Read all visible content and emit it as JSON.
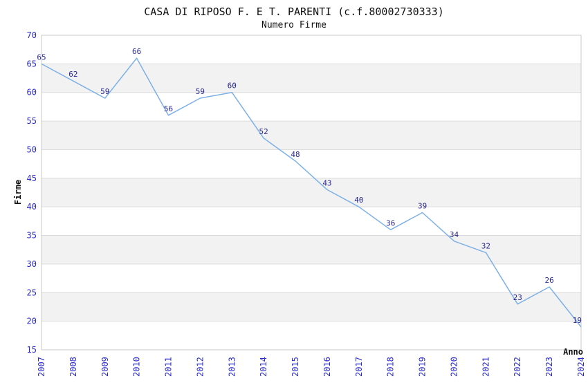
{
  "chart_data": {
    "type": "line",
    "title": "CASA DI RIPOSO F. E T. PARENTI (c.f.80002730333)",
    "subtitle": "Numero Firme",
    "xlabel": "Anno",
    "ylabel": "Firme",
    "x": [
      "2007",
      "2008",
      "2009",
      "2010",
      "2011",
      "2012",
      "2013",
      "2014",
      "2015",
      "2016",
      "2017",
      "2018",
      "2019",
      "2020",
      "2021",
      "2022",
      "2023",
      "2024"
    ],
    "series": [
      {
        "name": "Numero Firme",
        "values": [
          65,
          62,
          59,
          66,
          56,
          59,
          60,
          52,
          48,
          43,
          40,
          36,
          39,
          34,
          32,
          23,
          26,
          19
        ]
      }
    ],
    "ylim": [
      15,
      70
    ],
    "ytick_step": 5,
    "grid": "horizontal-only",
    "legend": "none",
    "point_labels_shown": true,
    "colors": {
      "line": "#7db0e6",
      "point_label": "#28288f",
      "tick_label": "#2929cc",
      "band": "#f2f2f2",
      "gridline": "#dcdcdc",
      "border": "#c9c9c9",
      "text": "#111111",
      "background": "#ffffff"
    }
  }
}
